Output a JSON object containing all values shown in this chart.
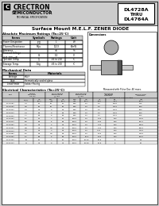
{
  "bg_color": "#cccccc",
  "white": "#ffffff",
  "black": "#000000",
  "header_bg": "#bbbbbb",
  "company": "CRECTRON",
  "company_sub": "SEMICONDUCTOR",
  "tech_spec": "TECHNICAL SPECIFICATION",
  "part_range_line1": "DL4728A",
  "part_range_line2": "THRU",
  "part_range_line3": "DL4764A",
  "title": "Surface Mount M.E.L.F. ZENER DIODE",
  "abs_max_title": "Absolute Maximum Ratings (Ta=25°C)",
  "mech_title": "Mechanical Data",
  "elec_title": "Electrical Characteristics (Ta=25°C)",
  "elec_note": "Measured with Pulse Dur. 40 msec.",
  "elec_rows": [
    [
      "DL4728A",
      "3.3",
      "76",
      "10",
      "76",
      "400",
      "1.0",
      "1.0",
      "7625",
      "276"
    ],
    [
      "DL4729A",
      "3.6",
      "69",
      "10",
      "69",
      "400",
      "1.0",
      "1.0",
      "7100",
      "250"
    ],
    [
      "DL4730A",
      "3.9",
      "64",
      "9",
      "64",
      "400",
      "1.0",
      "1.0",
      "7100",
      "250"
    ],
    [
      "DL4731A",
      "4.3",
      "58",
      "9",
      "58",
      "400",
      "1.0",
      "1.0",
      "7100",
      "250"
    ],
    [
      "DL4732A",
      "4.7",
      "53",
      "8",
      "53",
      "400",
      "1.0",
      "1.0",
      "7100",
      "250"
    ],
    [
      "DL4733A",
      "5.1",
      "49",
      "7",
      "49",
      "1000",
      "1.0",
      "2.01",
      "750",
      "1176"
    ],
    [
      "DL4734A",
      "5.6",
      "45",
      "5",
      "45",
      "1000",
      "1.0",
      "2.01",
      "750",
      "1071"
    ],
    [
      "DL4735A",
      "6.2",
      "41",
      "2",
      "41",
      "1000",
      "1.0",
      "3.01",
      "750",
      "1953"
    ],
    [
      "DL4736A",
      "6.8",
      "37",
      "3.5",
      "37",
      "1000",
      "1.0",
      "3.01",
      "750",
      "1823"
    ],
    [
      "DL4737A",
      "7.5",
      "34",
      "4",
      "34",
      "1000",
      "1.0",
      "4.01",
      "750",
      "1753"
    ],
    [
      "DL4738A",
      "8.2",
      "31",
      "4.5",
      "31",
      "1000",
      "1.0",
      "5.01",
      "750",
      "1453"
    ],
    [
      "DL4739A",
      "9.1",
      "28",
      "5",
      "28",
      "1000",
      "10.2",
      "5.01",
      "750",
      "1000"
    ],
    [
      "DL4740A",
      "10",
      "25",
      "7",
      "25",
      "1000",
      "10.25",
      "16.8",
      "5",
      "59"
    ],
    [
      "DL4741A",
      "11",
      "23",
      "8",
      "23",
      "1000",
      "10.25",
      "16.8",
      "5",
      "68"
    ]
  ]
}
